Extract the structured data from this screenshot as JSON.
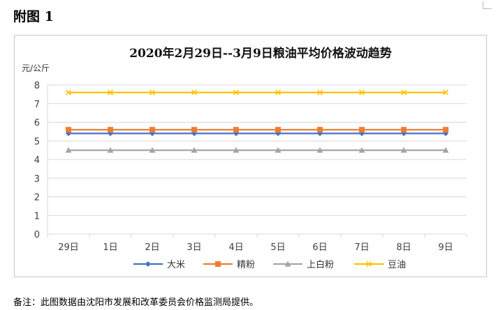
{
  "page": {
    "heading": "附图 1",
    "footnote": "备注：此图数据由沈阳市发展和改革委员会价格监测局提供。"
  },
  "chart_data": {
    "type": "line",
    "title": "2020年2月29日--3月9日粮油平均价格波动趋势",
    "ylabel": "元/公斤",
    "xlabel": "",
    "categories": [
      "29日",
      "1日",
      "2日",
      "3日",
      "4日",
      "5日",
      "6日",
      "7日",
      "8日",
      "9日"
    ],
    "ylim": [
      0,
      8
    ],
    "yticks": [
      0,
      1,
      2,
      3,
      4,
      5,
      6,
      7,
      8
    ],
    "grid": true,
    "legend_position": "bottom",
    "series": [
      {
        "name": "大米",
        "values": [
          5.4,
          5.4,
          5.4,
          5.4,
          5.4,
          5.4,
          5.4,
          5.4,
          5.4,
          5.4
        ],
        "color": "#4472C4",
        "marker": "diamond"
      },
      {
        "name": "精粉",
        "values": [
          5.6,
          5.6,
          5.6,
          5.6,
          5.6,
          5.6,
          5.6,
          5.6,
          5.6,
          5.6
        ],
        "color": "#ED7D31",
        "marker": "square"
      },
      {
        "name": "上白粉",
        "values": [
          4.5,
          4.5,
          4.5,
          4.5,
          4.5,
          4.5,
          4.5,
          4.5,
          4.5,
          4.5
        ],
        "color": "#A5A5A5",
        "marker": "triangle"
      },
      {
        "name": "豆油",
        "values": [
          7.6,
          7.6,
          7.6,
          7.6,
          7.6,
          7.6,
          7.6,
          7.6,
          7.6,
          7.6
        ],
        "color": "#FFC000",
        "marker": "x"
      }
    ]
  }
}
